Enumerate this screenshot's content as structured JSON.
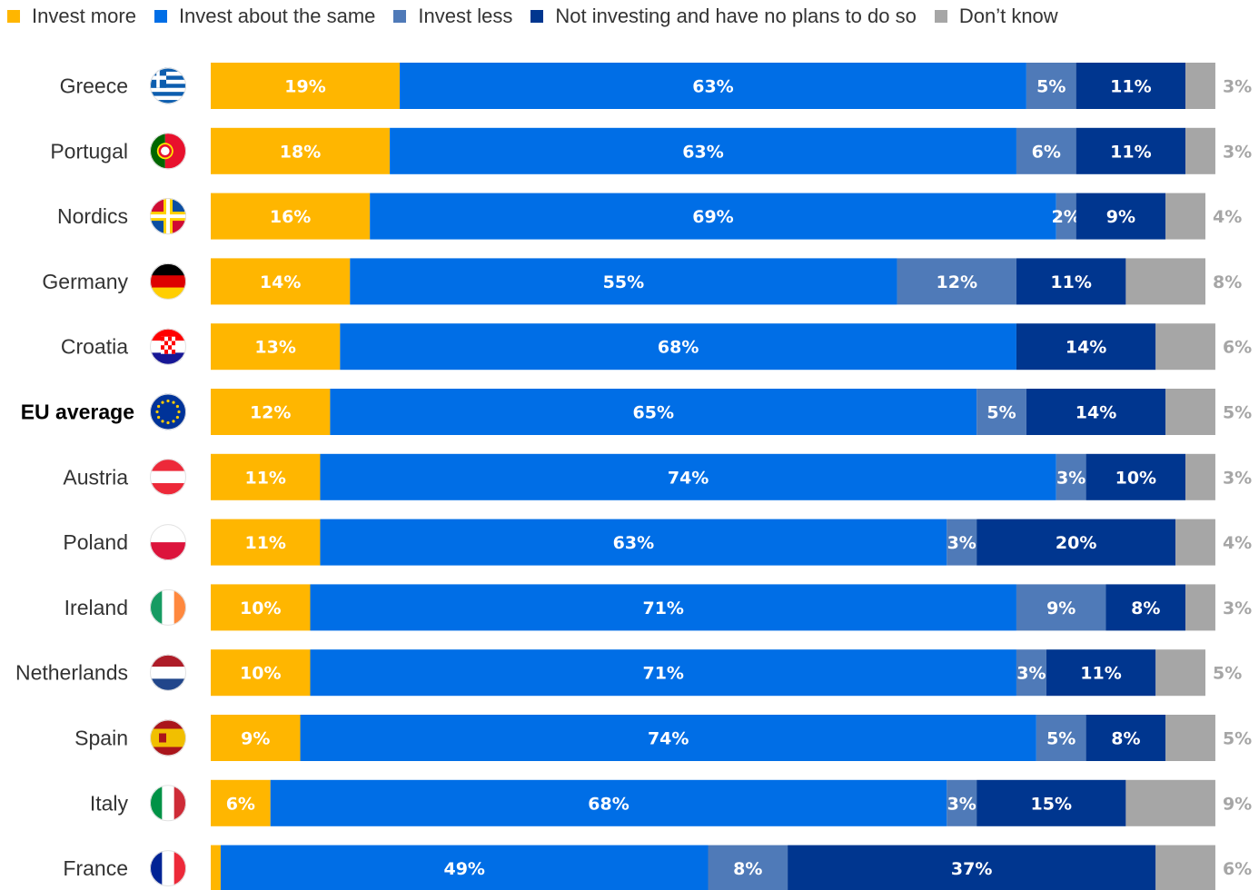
{
  "chart_data": {
    "type": "bar",
    "orientation": "horizontal",
    "stacked": true,
    "legend_position": "top",
    "xlim": [
      0,
      100
    ],
    "unit": "%",
    "categories": [
      "Greece",
      "Portugal",
      "Nordics",
      "Germany",
      "Croatia",
      "EU average",
      "Austria",
      "Poland",
      "Ireland",
      "Netherlands",
      "Spain",
      "Italy",
      "France"
    ],
    "highlight_category": "EU average",
    "category_icons": [
      "greece-flag-icon",
      "portugal-flag-icon",
      "nordics-flag-icon",
      "germany-flag-icon",
      "croatia-flag-icon",
      "eu-flag-icon",
      "austria-flag-icon",
      "poland-flag-icon",
      "ireland-flag-icon",
      "netherlands-flag-icon",
      "spain-flag-icon",
      "italy-flag-icon",
      "france-flag-icon"
    ],
    "series": [
      {
        "name": "Invest more",
        "color": "#FFB600",
        "values": [
          19,
          18,
          16,
          14,
          13,
          12,
          11,
          11,
          10,
          10,
          9,
          6,
          1
        ]
      },
      {
        "name": "Invest about the same",
        "color": "#006EE6",
        "values": [
          63,
          63,
          69,
          55,
          68,
          65,
          74,
          63,
          71,
          71,
          74,
          68,
          49
        ]
      },
      {
        "name": "Invest less",
        "color": "#4F7AB8",
        "values": [
          5,
          6,
          2,
          12,
          null,
          5,
          3,
          3,
          9,
          3,
          5,
          3,
          8
        ]
      },
      {
        "name": "Not investing and have no plans to do so",
        "color": "#00368F",
        "values": [
          11,
          11,
          9,
          11,
          14,
          14,
          10,
          20,
          8,
          11,
          8,
          15,
          37
        ]
      },
      {
        "name": "Don’t know",
        "color": "#A6A6A6",
        "values": [
          3,
          3,
          4,
          8,
          6,
          5,
          3,
          4,
          3,
          5,
          5,
          9,
          6
        ]
      }
    ]
  }
}
